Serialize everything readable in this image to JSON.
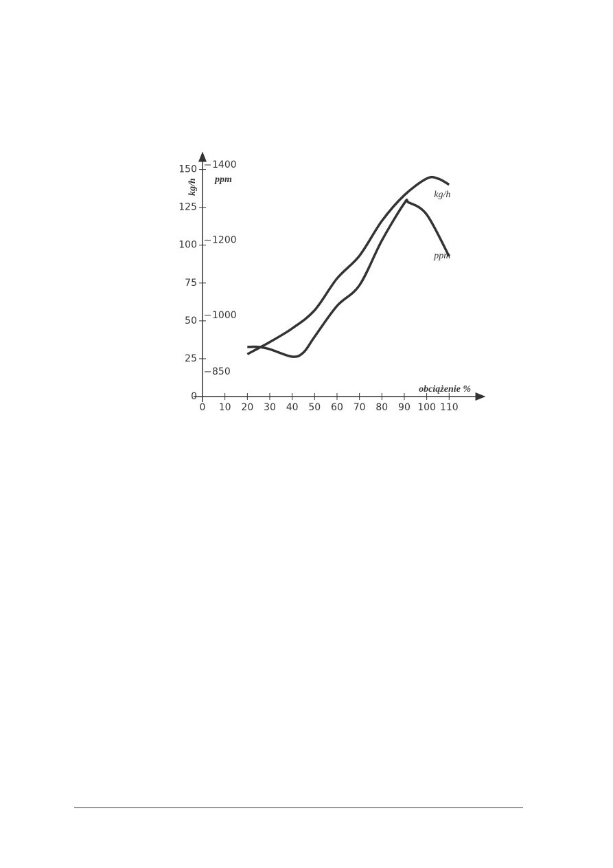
{
  "chart_data": {
    "type": "line",
    "y_label": "kg/h",
    "y2_label": "ppm",
    "x_label": "obciążenie %",
    "xlim": [
      0,
      124
    ],
    "xticks": [
      0,
      10,
      20,
      30,
      40,
      50,
      60,
      70,
      80,
      90,
      100,
      110
    ],
    "ylim": [
      0,
      153
    ],
    "yticks": [
      0,
      25,
      50,
      75,
      100,
      125,
      150
    ],
    "y2lim": [
      784,
      1400
    ],
    "y2ticks": [
      850,
      1000,
      1200,
      1400
    ],
    "series": [
      {
        "name": "kg/h",
        "color": "#333333",
        "x": [
          20,
          30,
          40,
          50,
          60,
          70,
          80,
          90,
          100,
          105,
          110
        ],
        "values": [
          28,
          36,
          45,
          57,
          78,
          93,
          116,
          133,
          144,
          144,
          140
        ]
      },
      {
        "name": "ppm",
        "color": "#333333",
        "axis": "y2",
        "x": [
          20,
          25,
          30,
          40,
          45,
          50,
          60,
          70,
          80,
          90,
          92,
          100,
          110
        ],
        "values": [
          916,
          916,
          910,
          890,
          901,
          943,
          1025,
          1080,
          1199,
          1298,
          1300,
          1268,
          1157
        ]
      }
    ]
  }
}
